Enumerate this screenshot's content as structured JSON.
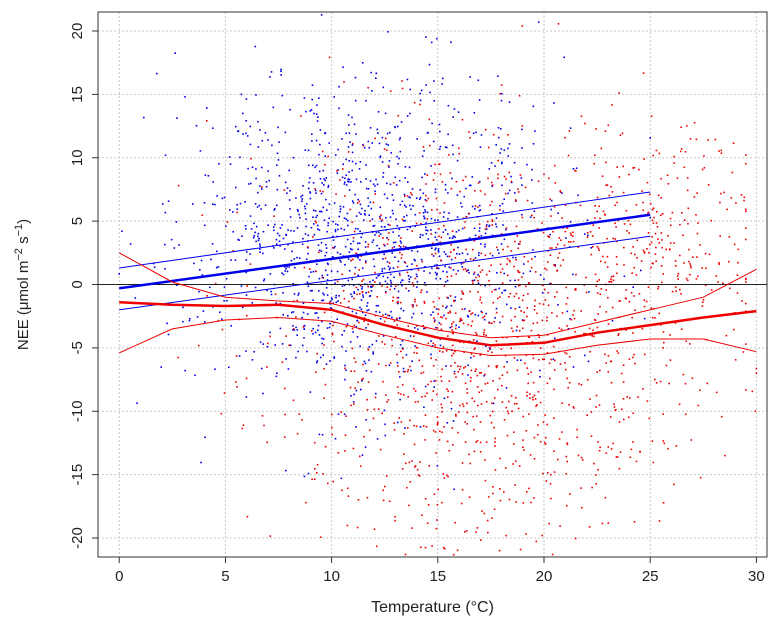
{
  "chart_data": {
    "type": "scatter",
    "title": "",
    "xlabel": "Temperature (°C)",
    "ylabel": {
      "prefix": "NEE (",
      "mu": "μ",
      "unit": "mol m",
      "exp1": "−2",
      "s": " s",
      "exp2": "−1",
      "close": ")"
    },
    "xlim": [
      -1,
      30.5
    ],
    "ylim": [
      -21.5,
      21.5
    ],
    "x_ticks": [
      0,
      5,
      10,
      15,
      20,
      25,
      30
    ],
    "y_ticks": [
      -20,
      -15,
      -10,
      -5,
      0,
      5,
      10,
      15,
      20
    ],
    "x_tick_labels": [
      "0",
      "5",
      "10",
      "15",
      "20",
      "25",
      "30"
    ],
    "y_tick_labels": [
      "-20",
      "-15",
      "-10",
      "-5",
      "0",
      "5",
      "10",
      "15",
      "20"
    ],
    "grid": true,
    "grid_color": "#c8c8c8",
    "reference_line_y": 0,
    "legend": "none",
    "series": [
      {
        "color": "#0000ee",
        "marker": "point",
        "clouds": [
          {
            "n": 1300,
            "x_mean": 12.0,
            "x_sd": 4.2,
            "x_range": [
              0,
              25
            ],
            "y_mean": 3.5,
            "y_sd": 6.5
          }
        ],
        "trend": {
          "x": [
            0,
            25
          ],
          "fit": [
            -0.3,
            5.5
          ],
          "upper": [
            1.3,
            7.3
          ],
          "lower": [
            -2.0,
            3.8
          ]
        }
      },
      {
        "color": "#ee0000",
        "marker": "point",
        "clouds": [
          {
            "n": 1300,
            "x_mean": 17.0,
            "x_sd": 4.8,
            "x_range": [
              0,
              30
            ],
            "y_mean": -4.5,
            "y_sd": 8.5
          },
          {
            "n": 250,
            "x_mean": 25.5,
            "x_sd": 2.5,
            "x_range": [
              20,
              29.5
            ],
            "y_mean": 3.5,
            "y_sd": 5.0
          }
        ],
        "trend": {
          "x": [
            0,
            2.5,
            5,
            7.5,
            10,
            12.5,
            15,
            17.5,
            20,
            22.5,
            25,
            27.5,
            30
          ],
          "fit": [
            -1.4,
            -1.6,
            -1.7,
            -1.6,
            -2.0,
            -3.2,
            -4.2,
            -4.8,
            -4.6,
            -3.8,
            -3.2,
            -2.6,
            -2.1
          ],
          "upper": [
            2.5,
            0.2,
            -1.0,
            -1.3,
            -1.5,
            -2.6,
            -3.6,
            -4.2,
            -4.0,
            -3.0,
            -2.0,
            -1.0,
            1.2
          ],
          "lower": [
            -5.4,
            -3.5,
            -2.8,
            -2.6,
            -2.9,
            -4.0,
            -5.0,
            -5.6,
            -5.5,
            -4.8,
            -4.3,
            -4.3,
            -5.3
          ]
        }
      }
    ]
  }
}
